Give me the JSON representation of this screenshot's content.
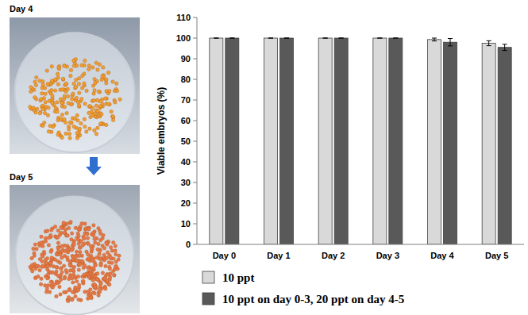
{
  "photos": [
    {
      "label": "Day 4"
    },
    {
      "label": "Day 5"
    }
  ],
  "chart_data": {
    "type": "bar",
    "y_label": "Viable embryos (%)",
    "categories": [
      "Day 0",
      "Day 1",
      "Day 2",
      "Day 3",
      "Day 4",
      "Day 5"
    ],
    "series": [
      {
        "name": "10 ppt",
        "color": "#d9d9d9",
        "values": [
          100,
          100,
          100,
          100,
          99.3,
          97.5
        ],
        "errors": [
          0,
          0,
          0,
          0,
          0.7,
          1.2
        ]
      },
      {
        "name": "10 ppt on day 0-3, 20 ppt on day 4-5",
        "color": "#595959",
        "values": [
          100,
          100,
          100,
          100,
          98,
          95.5
        ],
        "errors": [
          0,
          0,
          0,
          0,
          1.8,
          1.5
        ]
      }
    ],
    "ylim": [
      0,
      110
    ],
    "yticks": [
      0,
      10,
      20,
      30,
      40,
      50,
      60,
      70,
      80,
      90,
      100,
      110
    ],
    "grid": false,
    "legend": "bottom"
  }
}
